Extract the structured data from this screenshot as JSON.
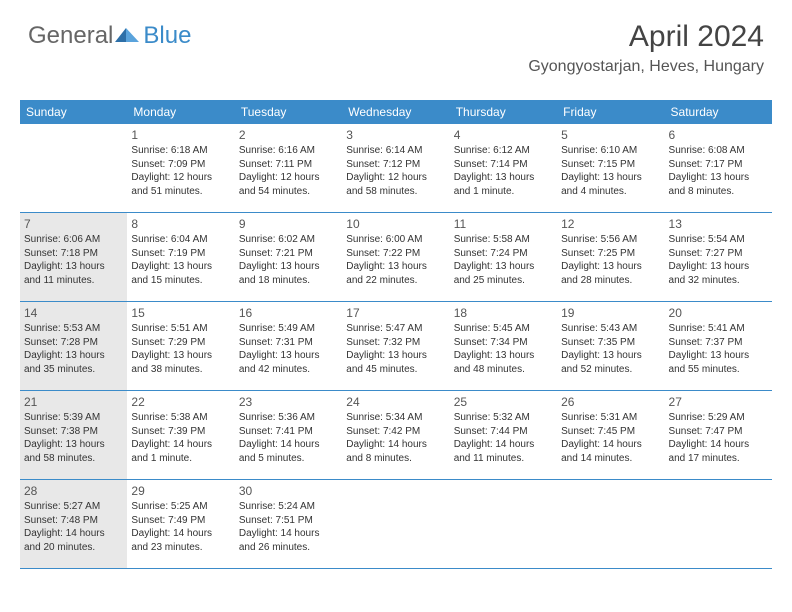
{
  "logo": {
    "general": "General",
    "blue": "Blue"
  },
  "header": {
    "month_title": "April 2024",
    "location": "Gyongyostarjan, Heves, Hungary"
  },
  "colors": {
    "header_bar": "#3b8bc9",
    "shaded_cell": "#e8e8e8",
    "border": "#3b8bc9",
    "text": "#333333",
    "logo_blue": "#3b8bc9"
  },
  "day_headers": [
    "Sunday",
    "Monday",
    "Tuesday",
    "Wednesday",
    "Thursday",
    "Friday",
    "Saturday"
  ],
  "weeks": [
    [
      {
        "num": "",
        "sunrise": "",
        "sunset": "",
        "daylight": "",
        "shaded": false
      },
      {
        "num": "1",
        "sunrise": "Sunrise: 6:18 AM",
        "sunset": "Sunset: 7:09 PM",
        "daylight": "Daylight: 12 hours and 51 minutes.",
        "shaded": false
      },
      {
        "num": "2",
        "sunrise": "Sunrise: 6:16 AM",
        "sunset": "Sunset: 7:11 PM",
        "daylight": "Daylight: 12 hours and 54 minutes.",
        "shaded": false
      },
      {
        "num": "3",
        "sunrise": "Sunrise: 6:14 AM",
        "sunset": "Sunset: 7:12 PM",
        "daylight": "Daylight: 12 hours and 58 minutes.",
        "shaded": false
      },
      {
        "num": "4",
        "sunrise": "Sunrise: 6:12 AM",
        "sunset": "Sunset: 7:14 PM",
        "daylight": "Daylight: 13 hours and 1 minute.",
        "shaded": false
      },
      {
        "num": "5",
        "sunrise": "Sunrise: 6:10 AM",
        "sunset": "Sunset: 7:15 PM",
        "daylight": "Daylight: 13 hours and 4 minutes.",
        "shaded": false
      },
      {
        "num": "6",
        "sunrise": "Sunrise: 6:08 AM",
        "sunset": "Sunset: 7:17 PM",
        "daylight": "Daylight: 13 hours and 8 minutes.",
        "shaded": false
      }
    ],
    [
      {
        "num": "7",
        "sunrise": "Sunrise: 6:06 AM",
        "sunset": "Sunset: 7:18 PM",
        "daylight": "Daylight: 13 hours and 11 minutes.",
        "shaded": true
      },
      {
        "num": "8",
        "sunrise": "Sunrise: 6:04 AM",
        "sunset": "Sunset: 7:19 PM",
        "daylight": "Daylight: 13 hours and 15 minutes.",
        "shaded": false
      },
      {
        "num": "9",
        "sunrise": "Sunrise: 6:02 AM",
        "sunset": "Sunset: 7:21 PM",
        "daylight": "Daylight: 13 hours and 18 minutes.",
        "shaded": false
      },
      {
        "num": "10",
        "sunrise": "Sunrise: 6:00 AM",
        "sunset": "Sunset: 7:22 PM",
        "daylight": "Daylight: 13 hours and 22 minutes.",
        "shaded": false
      },
      {
        "num": "11",
        "sunrise": "Sunrise: 5:58 AM",
        "sunset": "Sunset: 7:24 PM",
        "daylight": "Daylight: 13 hours and 25 minutes.",
        "shaded": false
      },
      {
        "num": "12",
        "sunrise": "Sunrise: 5:56 AM",
        "sunset": "Sunset: 7:25 PM",
        "daylight": "Daylight: 13 hours and 28 minutes.",
        "shaded": false
      },
      {
        "num": "13",
        "sunrise": "Sunrise: 5:54 AM",
        "sunset": "Sunset: 7:27 PM",
        "daylight": "Daylight: 13 hours and 32 minutes.",
        "shaded": false
      }
    ],
    [
      {
        "num": "14",
        "sunrise": "Sunrise: 5:53 AM",
        "sunset": "Sunset: 7:28 PM",
        "daylight": "Daylight: 13 hours and 35 minutes.",
        "shaded": true
      },
      {
        "num": "15",
        "sunrise": "Sunrise: 5:51 AM",
        "sunset": "Sunset: 7:29 PM",
        "daylight": "Daylight: 13 hours and 38 minutes.",
        "shaded": false
      },
      {
        "num": "16",
        "sunrise": "Sunrise: 5:49 AM",
        "sunset": "Sunset: 7:31 PM",
        "daylight": "Daylight: 13 hours and 42 minutes.",
        "shaded": false
      },
      {
        "num": "17",
        "sunrise": "Sunrise: 5:47 AM",
        "sunset": "Sunset: 7:32 PM",
        "daylight": "Daylight: 13 hours and 45 minutes.",
        "shaded": false
      },
      {
        "num": "18",
        "sunrise": "Sunrise: 5:45 AM",
        "sunset": "Sunset: 7:34 PM",
        "daylight": "Daylight: 13 hours and 48 minutes.",
        "shaded": false
      },
      {
        "num": "19",
        "sunrise": "Sunrise: 5:43 AM",
        "sunset": "Sunset: 7:35 PM",
        "daylight": "Daylight: 13 hours and 52 minutes.",
        "shaded": false
      },
      {
        "num": "20",
        "sunrise": "Sunrise: 5:41 AM",
        "sunset": "Sunset: 7:37 PM",
        "daylight": "Daylight: 13 hours and 55 minutes.",
        "shaded": false
      }
    ],
    [
      {
        "num": "21",
        "sunrise": "Sunrise: 5:39 AM",
        "sunset": "Sunset: 7:38 PM",
        "daylight": "Daylight: 13 hours and 58 minutes.",
        "shaded": true
      },
      {
        "num": "22",
        "sunrise": "Sunrise: 5:38 AM",
        "sunset": "Sunset: 7:39 PM",
        "daylight": "Daylight: 14 hours and 1 minute.",
        "shaded": false
      },
      {
        "num": "23",
        "sunrise": "Sunrise: 5:36 AM",
        "sunset": "Sunset: 7:41 PM",
        "daylight": "Daylight: 14 hours and 5 minutes.",
        "shaded": false
      },
      {
        "num": "24",
        "sunrise": "Sunrise: 5:34 AM",
        "sunset": "Sunset: 7:42 PM",
        "daylight": "Daylight: 14 hours and 8 minutes.",
        "shaded": false
      },
      {
        "num": "25",
        "sunrise": "Sunrise: 5:32 AM",
        "sunset": "Sunset: 7:44 PM",
        "daylight": "Daylight: 14 hours and 11 minutes.",
        "shaded": false
      },
      {
        "num": "26",
        "sunrise": "Sunrise: 5:31 AM",
        "sunset": "Sunset: 7:45 PM",
        "daylight": "Daylight: 14 hours and 14 minutes.",
        "shaded": false
      },
      {
        "num": "27",
        "sunrise": "Sunrise: 5:29 AM",
        "sunset": "Sunset: 7:47 PM",
        "daylight": "Daylight: 14 hours and 17 minutes.",
        "shaded": false
      }
    ],
    [
      {
        "num": "28",
        "sunrise": "Sunrise: 5:27 AM",
        "sunset": "Sunset: 7:48 PM",
        "daylight": "Daylight: 14 hours and 20 minutes.",
        "shaded": true
      },
      {
        "num": "29",
        "sunrise": "Sunrise: 5:25 AM",
        "sunset": "Sunset: 7:49 PM",
        "daylight": "Daylight: 14 hours and 23 minutes.",
        "shaded": false
      },
      {
        "num": "30",
        "sunrise": "Sunrise: 5:24 AM",
        "sunset": "Sunset: 7:51 PM",
        "daylight": "Daylight: 14 hours and 26 minutes.",
        "shaded": false
      },
      {
        "num": "",
        "sunrise": "",
        "sunset": "",
        "daylight": "",
        "shaded": false
      },
      {
        "num": "",
        "sunrise": "",
        "sunset": "",
        "daylight": "",
        "shaded": false
      },
      {
        "num": "",
        "sunrise": "",
        "sunset": "",
        "daylight": "",
        "shaded": false
      },
      {
        "num": "",
        "sunrise": "",
        "sunset": "",
        "daylight": "",
        "shaded": false
      }
    ]
  ]
}
